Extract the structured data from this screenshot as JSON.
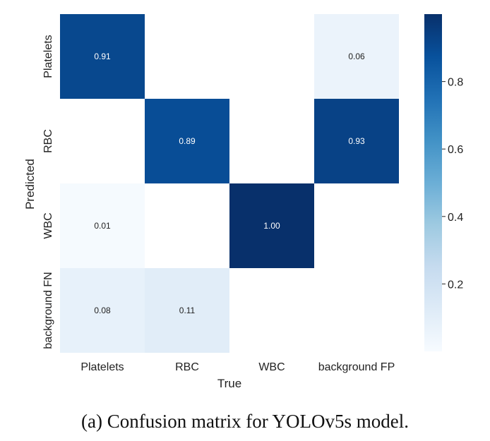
{
  "caption": "(a)  Confusion matrix for YOLOv5s model.",
  "chart_data": {
    "type": "heatmap",
    "xlabel": "True",
    "ylabel": "Predicted",
    "x_categories": [
      "Platelets",
      "RBC",
      "WBC",
      "background FP"
    ],
    "y_categories": [
      "Platelets",
      "RBC",
      "WBC",
      "background FN"
    ],
    "cells": [
      {
        "row": 0,
        "col": 0,
        "value": 0.91,
        "label": "0.91"
      },
      {
        "row": 0,
        "col": 3,
        "value": 0.06,
        "label": "0.06"
      },
      {
        "row": 1,
        "col": 1,
        "value": 0.89,
        "label": "0.89"
      },
      {
        "row": 1,
        "col": 3,
        "value": 0.93,
        "label": "0.93"
      },
      {
        "row": 2,
        "col": 0,
        "value": 0.01,
        "label": "0.01"
      },
      {
        "row": 2,
        "col": 2,
        "value": 1.0,
        "label": "1.00"
      },
      {
        "row": 3,
        "col": 0,
        "value": 0.08,
        "label": "0.08"
      },
      {
        "row": 3,
        "col": 1,
        "value": 0.11,
        "label": "0.11"
      }
    ],
    "colorbar": {
      "colormap": "Blues",
      "range": [
        0,
        1
      ],
      "ticks": [
        0.2,
        0.4,
        0.6,
        0.8
      ],
      "tick_labels": [
        "0.2",
        "0.4",
        "0.6",
        "0.8"
      ]
    }
  }
}
